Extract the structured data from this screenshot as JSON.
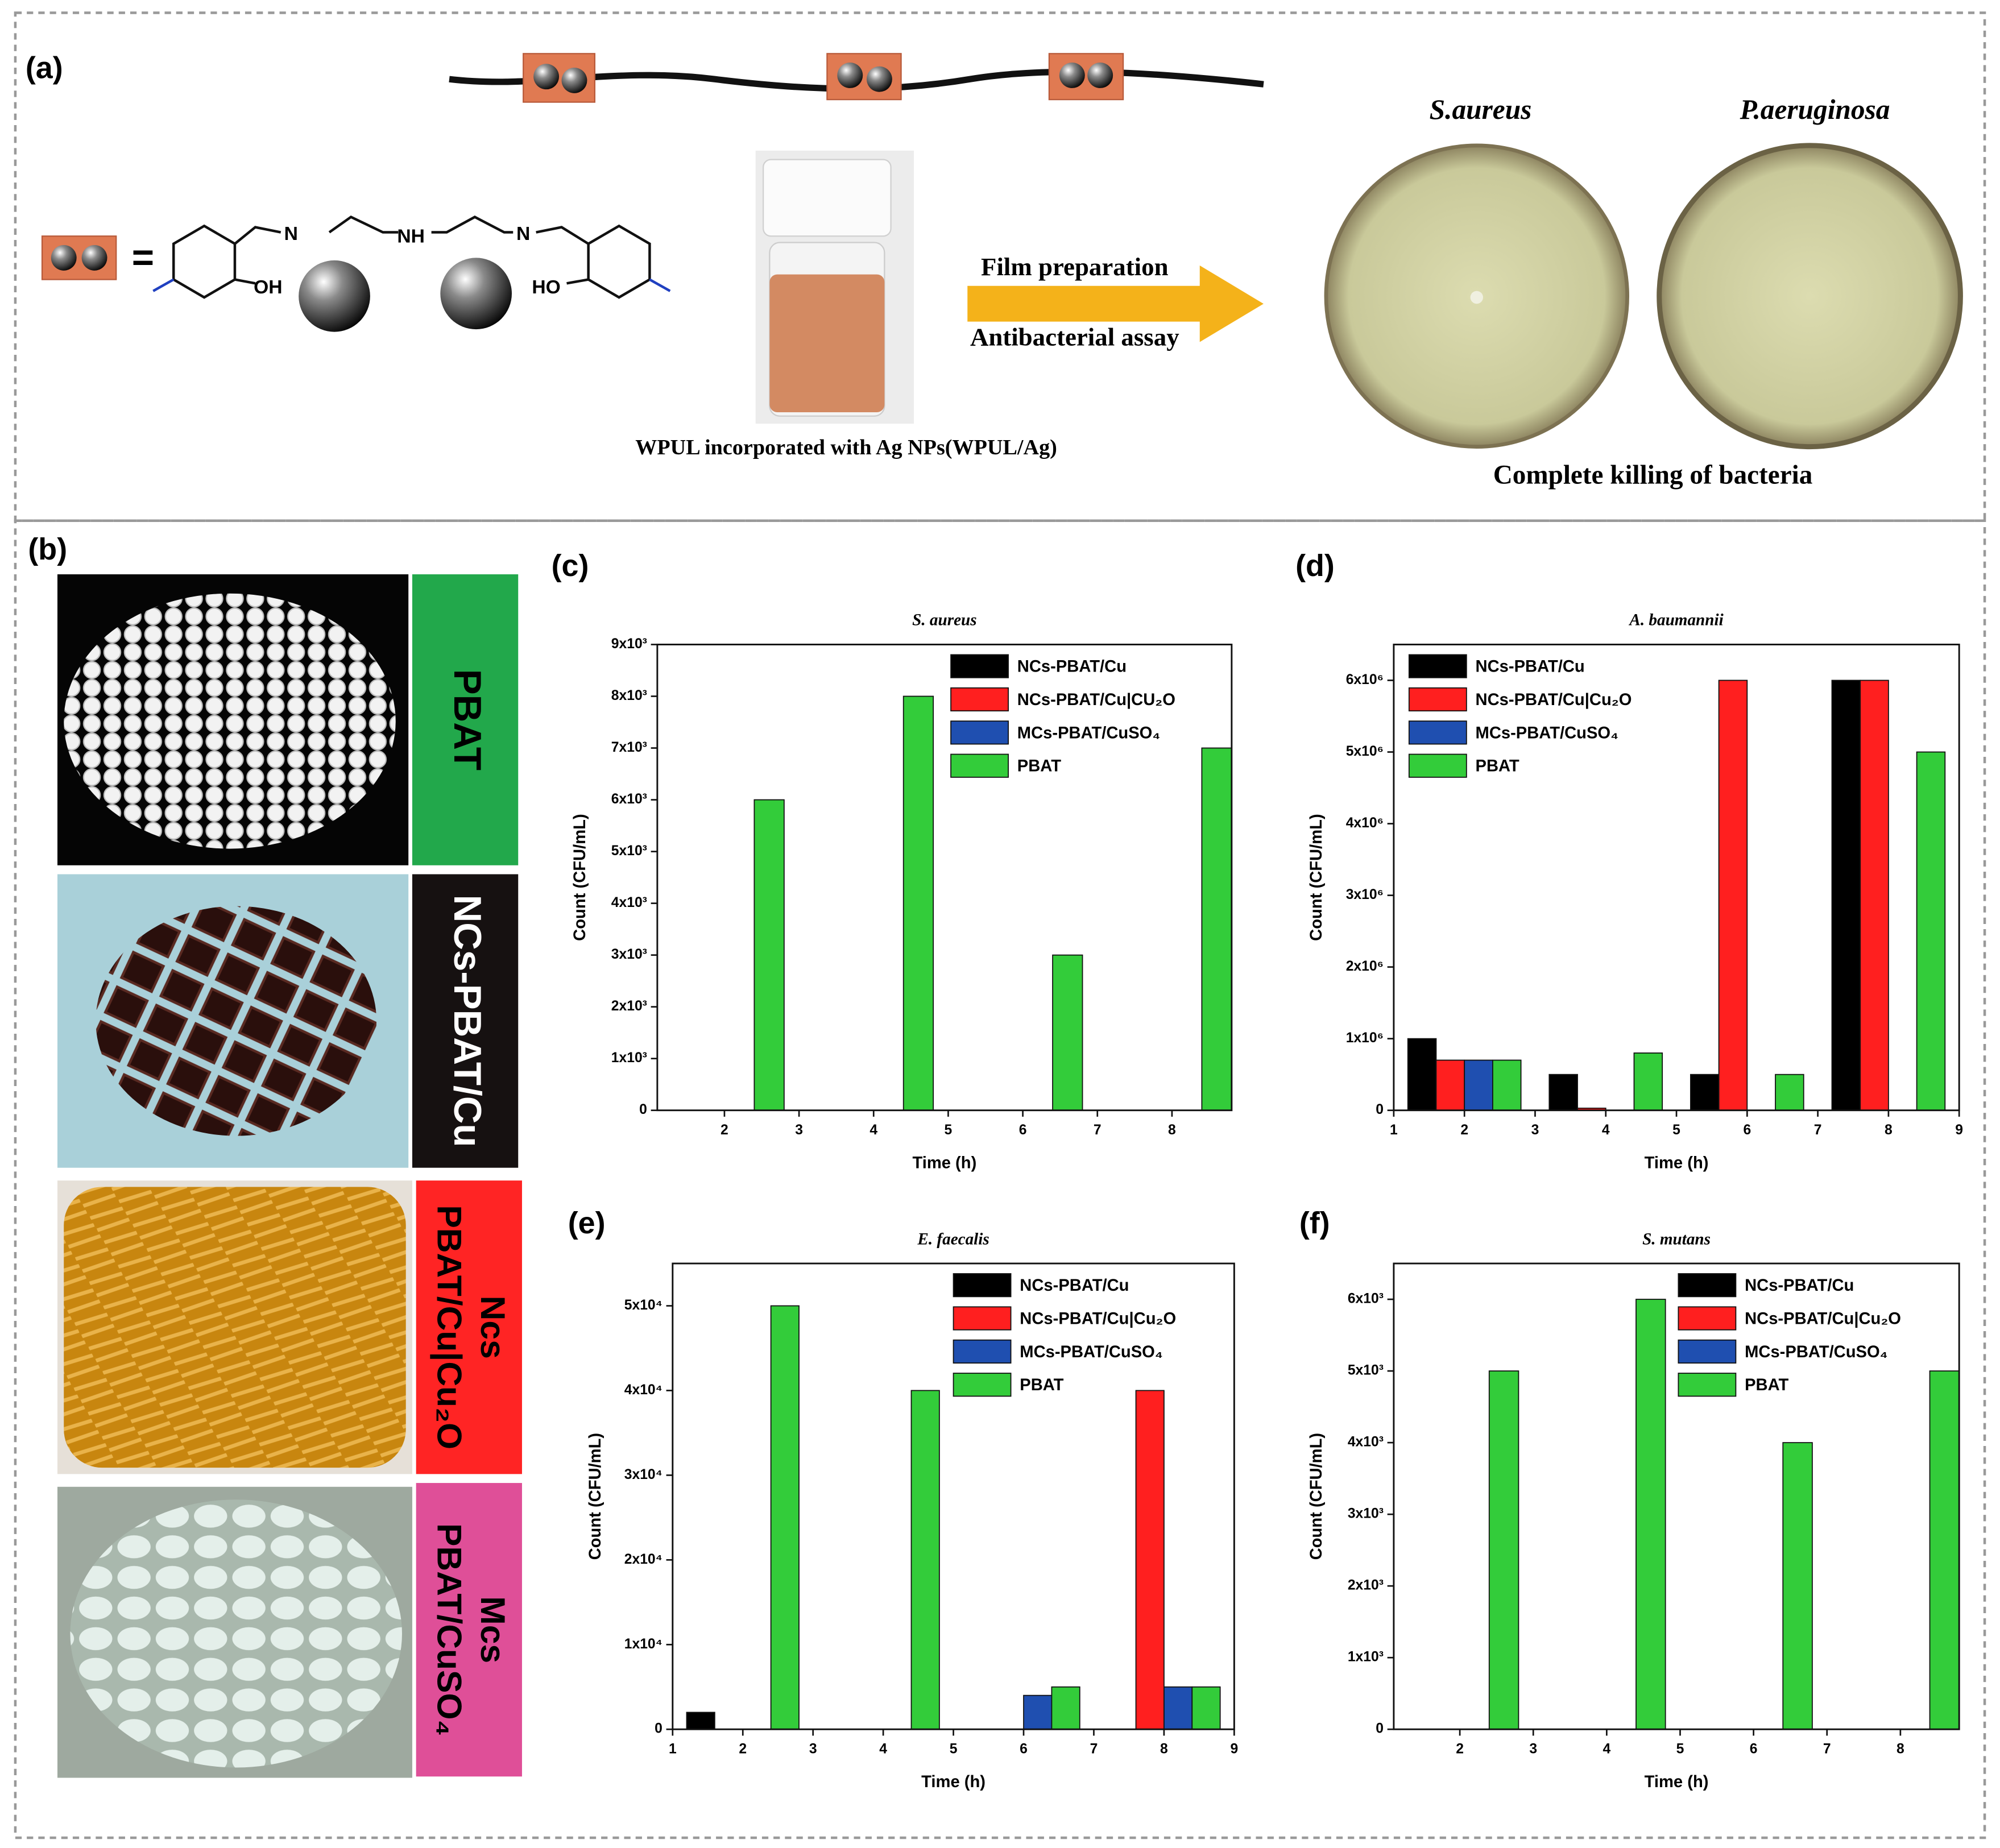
{
  "panel_labels": [
    "(a)",
    "(b)",
    "(c)",
    "(d)",
    "(e)",
    "(f)"
  ],
  "panel_a": {
    "equals": "=",
    "structure_labels": [
      "N",
      "NH",
      "N",
      "OH",
      "HO"
    ],
    "arrow_labels": [
      "Film preparation",
      "Antibacterial assay"
    ],
    "vial_caption": "WPUL incorporated with Ag NPs(WPUL/Ag)",
    "dish_labels": [
      "S.aureus",
      "P.aeruginosa"
    ],
    "dish_caption": "Complete killing of bacteria"
  },
  "panel_b": {
    "labels": [
      [
        "PBAT"
      ],
      [
        "NCs-PBAT/Cu"
      ],
      [
        "Ncs",
        "PBAT/Cu|Cu₂O"
      ],
      [
        "Mcs",
        "PBAT/CuSO₄"
      ]
    ]
  },
  "chart_data": [
    {
      "type": "bar",
      "title": "S. aureus",
      "x_label": "Time (h)",
      "y_label": "Count (CFU/mL)",
      "x": [
        2,
        4,
        6,
        8
      ],
      "xlim": [
        1.1,
        8.8
      ],
      "xticks": [
        2,
        3,
        4,
        5,
        6,
        7,
        8
      ],
      "ylim": [
        0,
        9000
      ],
      "yticks": [
        0,
        {
          "value": 1000,
          "label": "1x10³"
        },
        {
          "value": 2000,
          "label": "2x10³"
        },
        {
          "value": 3000,
          "label": "3x10³"
        },
        {
          "value": 4000,
          "label": "4x10³"
        },
        {
          "value": 5000,
          "label": "5x10³"
        },
        {
          "value": 6000,
          "label": "6x10³"
        },
        {
          "value": 7000,
          "label": "7x10³"
        },
        {
          "value": 8000,
          "label": "8x10³"
        },
        {
          "value": 9000,
          "label": "9x10³"
        }
      ],
      "legend": "upper right",
      "series": [
        {
          "name": "NCs-PBAT/Cu",
          "color": "#000000",
          "values": [
            0,
            0,
            0,
            0
          ]
        },
        {
          "name": "NCs-PBAT/Cu|CU₂O",
          "color": "#ff1f1f",
          "values": [
            0,
            0,
            0,
            0
          ]
        },
        {
          "name": "MCs-PBAT/CuSO₄",
          "color": "#1f4fb0",
          "values": [
            0,
            0,
            0,
            0
          ]
        },
        {
          "name": "PBAT",
          "color": "#33cc3a",
          "values": [
            6000,
            8000,
            3000,
            7000
          ]
        }
      ]
    },
    {
      "type": "bar",
      "title": "A. baumannii",
      "x_label": "Time (h)",
      "y_label": "Count (CFU/mL)",
      "x": [
        2,
        4,
        6,
        8
      ],
      "xlim": [
        1,
        9
      ],
      "xticks": [
        1,
        2,
        3,
        4,
        5,
        6,
        7,
        8,
        9
      ],
      "ylim": [
        0,
        6500000
      ],
      "yticks": [
        0,
        {
          "value": 1000000,
          "label": "1x10⁶"
        },
        {
          "value": 2000000,
          "label": "2x10⁶"
        },
        {
          "value": 3000000,
          "label": "3x10⁶"
        },
        {
          "value": 4000000,
          "label": "4x10⁶"
        },
        {
          "value": 5000000,
          "label": "5x10⁶"
        },
        {
          "value": 6000000,
          "label": "6x10⁶"
        }
      ],
      "legend": "upper left",
      "series": [
        {
          "name": "NCs-PBAT/Cu",
          "color": "#000000",
          "values": [
            1000000,
            500000,
            500000,
            6000000
          ]
        },
        {
          "name": "NCs-PBAT/Cu|Cu₂O",
          "color": "#ff1f1f",
          "values": [
            700000,
            30000,
            6000000,
            6000000
          ]
        },
        {
          "name": "MCs-PBAT/CuSO₄",
          "color": "#1f4fb0",
          "values": [
            700000,
            0,
            0,
            0
          ]
        },
        {
          "name": "PBAT",
          "color": "#33cc3a",
          "values": [
            700000,
            800000,
            500000,
            5000000
          ]
        }
      ]
    },
    {
      "type": "bar",
      "title": "E. faecalis",
      "x_label": "Time (h)",
      "y_label": "Count (CFU/mL)",
      "x": [
        2,
        4,
        6,
        8
      ],
      "xlim": [
        1,
        9
      ],
      "xticks": [
        1,
        2,
        3,
        4,
        5,
        6,
        7,
        8,
        9
      ],
      "ylim": [
        0,
        55000
      ],
      "yticks": [
        0,
        {
          "value": 10000,
          "label": "1x10⁴"
        },
        {
          "value": 20000,
          "label": "2x10⁴"
        },
        {
          "value": 30000,
          "label": "3x10⁴"
        },
        {
          "value": 40000,
          "label": "4x10⁴"
        },
        {
          "value": 50000,
          "label": "5x10⁴"
        }
      ],
      "legend": "upper right",
      "series": [
        {
          "name": "NCs-PBAT/Cu",
          "color": "#000000",
          "values": [
            2000,
            0,
            0,
            0
          ]
        },
        {
          "name": "NCs-PBAT/Cu|Cu₂O",
          "color": "#ff1f1f",
          "values": [
            0,
            0,
            0,
            40000
          ]
        },
        {
          "name": "MCs-PBAT/CuSO₄",
          "color": "#1f4fb0",
          "values": [
            0,
            0,
            4000,
            5000
          ]
        },
        {
          "name": "PBAT",
          "color": "#33cc3a",
          "values": [
            50000,
            40000,
            5000,
            5000
          ]
        }
      ]
    },
    {
      "type": "bar",
      "title": "S. mutans",
      "x_label": "Time (h)",
      "y_label": "Count (CFU/mL)",
      "x": [
        2,
        4,
        6,
        8
      ],
      "xlim": [
        1.1,
        8.8
      ],
      "xticks": [
        2,
        3,
        4,
        5,
        6,
        7,
        8
      ],
      "ylim": [
        0,
        6500
      ],
      "yticks": [
        0,
        {
          "value": 1000,
          "label": "1x10³"
        },
        {
          "value": 2000,
          "label": "2x10³"
        },
        {
          "value": 3000,
          "label": "3x10³"
        },
        {
          "value": 4000,
          "label": "4x10³"
        },
        {
          "value": 5000,
          "label": "5x10³"
        },
        {
          "value": 6000,
          "label": "6x10³"
        }
      ],
      "legend": "upper right",
      "series": [
        {
          "name": "NCs-PBAT/Cu",
          "color": "#000000",
          "values": [
            0,
            0,
            0,
            0
          ]
        },
        {
          "name": "NCs-PBAT/Cu|Cu₂O",
          "color": "#ff1f1f",
          "values": [
            0,
            0,
            0,
            0
          ]
        },
        {
          "name": "MCs-PBAT/CuSO₄",
          "color": "#1f4fb0",
          "values": [
            0,
            0,
            0,
            0
          ]
        },
        {
          "name": "PBAT",
          "color": "#33cc3a",
          "values": [
            5000,
            6000,
            4000,
            5000
          ]
        }
      ]
    }
  ]
}
